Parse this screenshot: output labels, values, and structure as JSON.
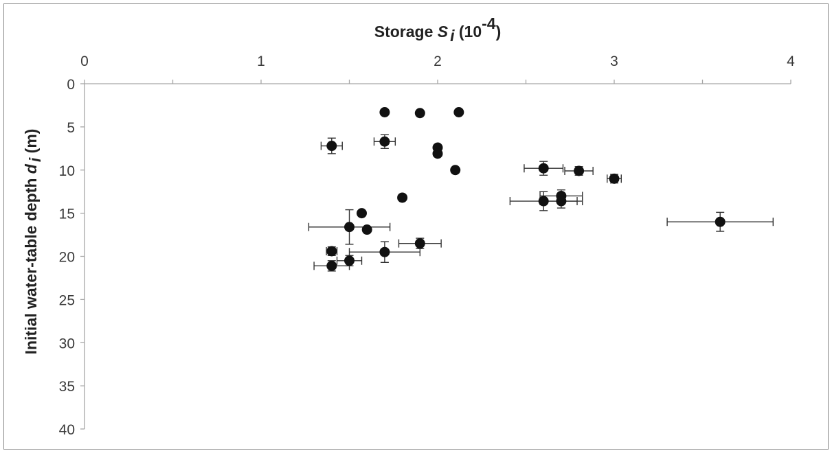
{
  "chart_data": {
    "type": "scatter",
    "title": "",
    "xlabel": {
      "text": "Storage ",
      "symbol": "S",
      "subscript": "i",
      "unit_open": " (10",
      "exponent": "-4",
      "unit_close": ")"
    },
    "ylabel": {
      "text": "Initial water-table depth ",
      "symbol": "d",
      "subscript": "i",
      "unit": " (m)"
    },
    "xlim": [
      0,
      4
    ],
    "ylim": [
      0,
      40
    ],
    "y_inverted": true,
    "x_axis_position": "top",
    "x_ticks": [
      0,
      1,
      2,
      3,
      4
    ],
    "y_ticks": [
      0,
      5,
      10,
      15,
      20,
      25,
      30,
      35,
      40
    ],
    "x_tick_labels": [
      "0",
      "1",
      "2",
      "3",
      "4"
    ],
    "y_tick_labels": [
      "0",
      "5",
      "10",
      "15",
      "20",
      "25",
      "30",
      "35",
      "40"
    ],
    "grid": false,
    "legend": "none",
    "marker_color": "#111111",
    "points": [
      {
        "x": 1.7,
        "y": 3.3
      },
      {
        "x": 1.9,
        "y": 3.4
      },
      {
        "x": 2.12,
        "y": 3.3
      },
      {
        "x": 1.4,
        "y": 7.2,
        "xerr": 0.06,
        "yerr": 0.9
      },
      {
        "x": 1.7,
        "y": 6.7,
        "xerr": 0.06,
        "yerr": 0.8
      },
      {
        "x": 2.0,
        "y": 7.4
      },
      {
        "x": 2.0,
        "y": 8.1
      },
      {
        "x": 2.1,
        "y": 10.0
      },
      {
        "x": 2.6,
        "y": 9.8,
        "xerr": 0.11,
        "yerr": 0.8
      },
      {
        "x": 2.8,
        "y": 10.1,
        "xerr": 0.08,
        "yerr": 0.5
      },
      {
        "x": 3.0,
        "y": 11.0,
        "xerr": 0.04,
        "yerr": 0.5
      },
      {
        "x": 1.8,
        "y": 13.2
      },
      {
        "x": 2.7,
        "y": 13.0,
        "xerr": 0.12,
        "yerr": 0.7
      },
      {
        "x": 2.6,
        "y": 13.6,
        "xerr": 0.19,
        "yerr": 1.1
      },
      {
        "x": 2.7,
        "y": 13.6,
        "xerr": 0.12,
        "yerr": 0.8
      },
      {
        "x": 3.6,
        "y": 16.0,
        "xerr": 0.3,
        "yerr": 1.1
      },
      {
        "x": 1.57,
        "y": 15.0
      },
      {
        "x": 1.5,
        "y": 16.6,
        "xerr": 0.23,
        "yerr": 2.0
      },
      {
        "x": 1.6,
        "y": 16.9
      },
      {
        "x": 1.9,
        "y": 18.5,
        "xerr": 0.12,
        "yerr": 0.6
      },
      {
        "x": 1.4,
        "y": 19.4,
        "xerr": 0.03,
        "yerr": 0.5
      },
      {
        "x": 1.7,
        "y": 19.5,
        "xerr": 0.2,
        "yerr": 1.2
      },
      {
        "x": 1.5,
        "y": 20.5,
        "xerr": 0.07,
        "yerr": 0.6
      },
      {
        "x": 1.4,
        "y": 21.1,
        "xerr": 0.1,
        "yerr": 0.6
      }
    ]
  }
}
